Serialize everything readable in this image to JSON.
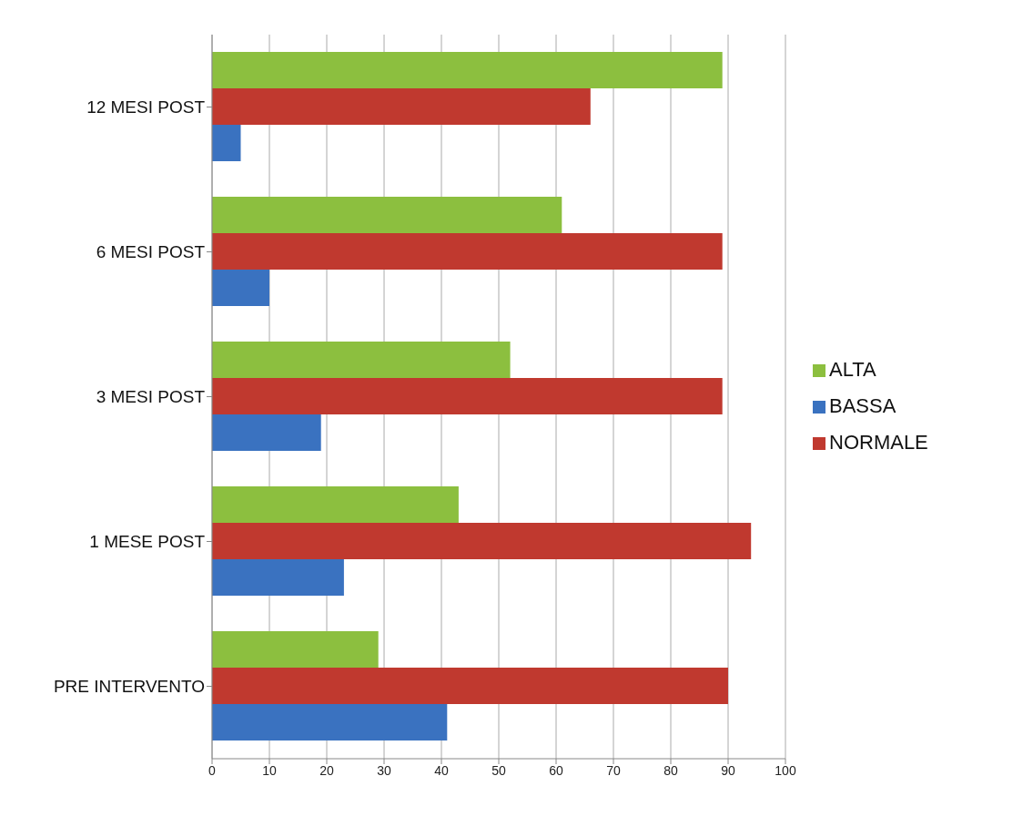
{
  "chart_data": {
    "type": "bar",
    "orientation": "horizontal",
    "categories": [
      "12 MESI POST",
      "6 MESI POST",
      "3 MESI POST",
      "1 MESE POST",
      "PRE INTERVENTO"
    ],
    "series": [
      {
        "name": "ALTA",
        "color": "#8cbf3f",
        "values": [
          89,
          61,
          52,
          43,
          29
        ]
      },
      {
        "name": "NORMALE",
        "color": "#c0392f",
        "values": [
          66,
          89,
          89,
          94,
          90
        ]
      },
      {
        "name": "BASSA",
        "color": "#3a72c0",
        "values": [
          5,
          10,
          19,
          23,
          41
        ]
      }
    ],
    "xlim": [
      0,
      100
    ],
    "xticks": [
      0,
      10,
      20,
      30,
      40,
      50,
      60,
      70,
      80,
      90,
      100
    ],
    "grid": "x",
    "legend": "right"
  }
}
